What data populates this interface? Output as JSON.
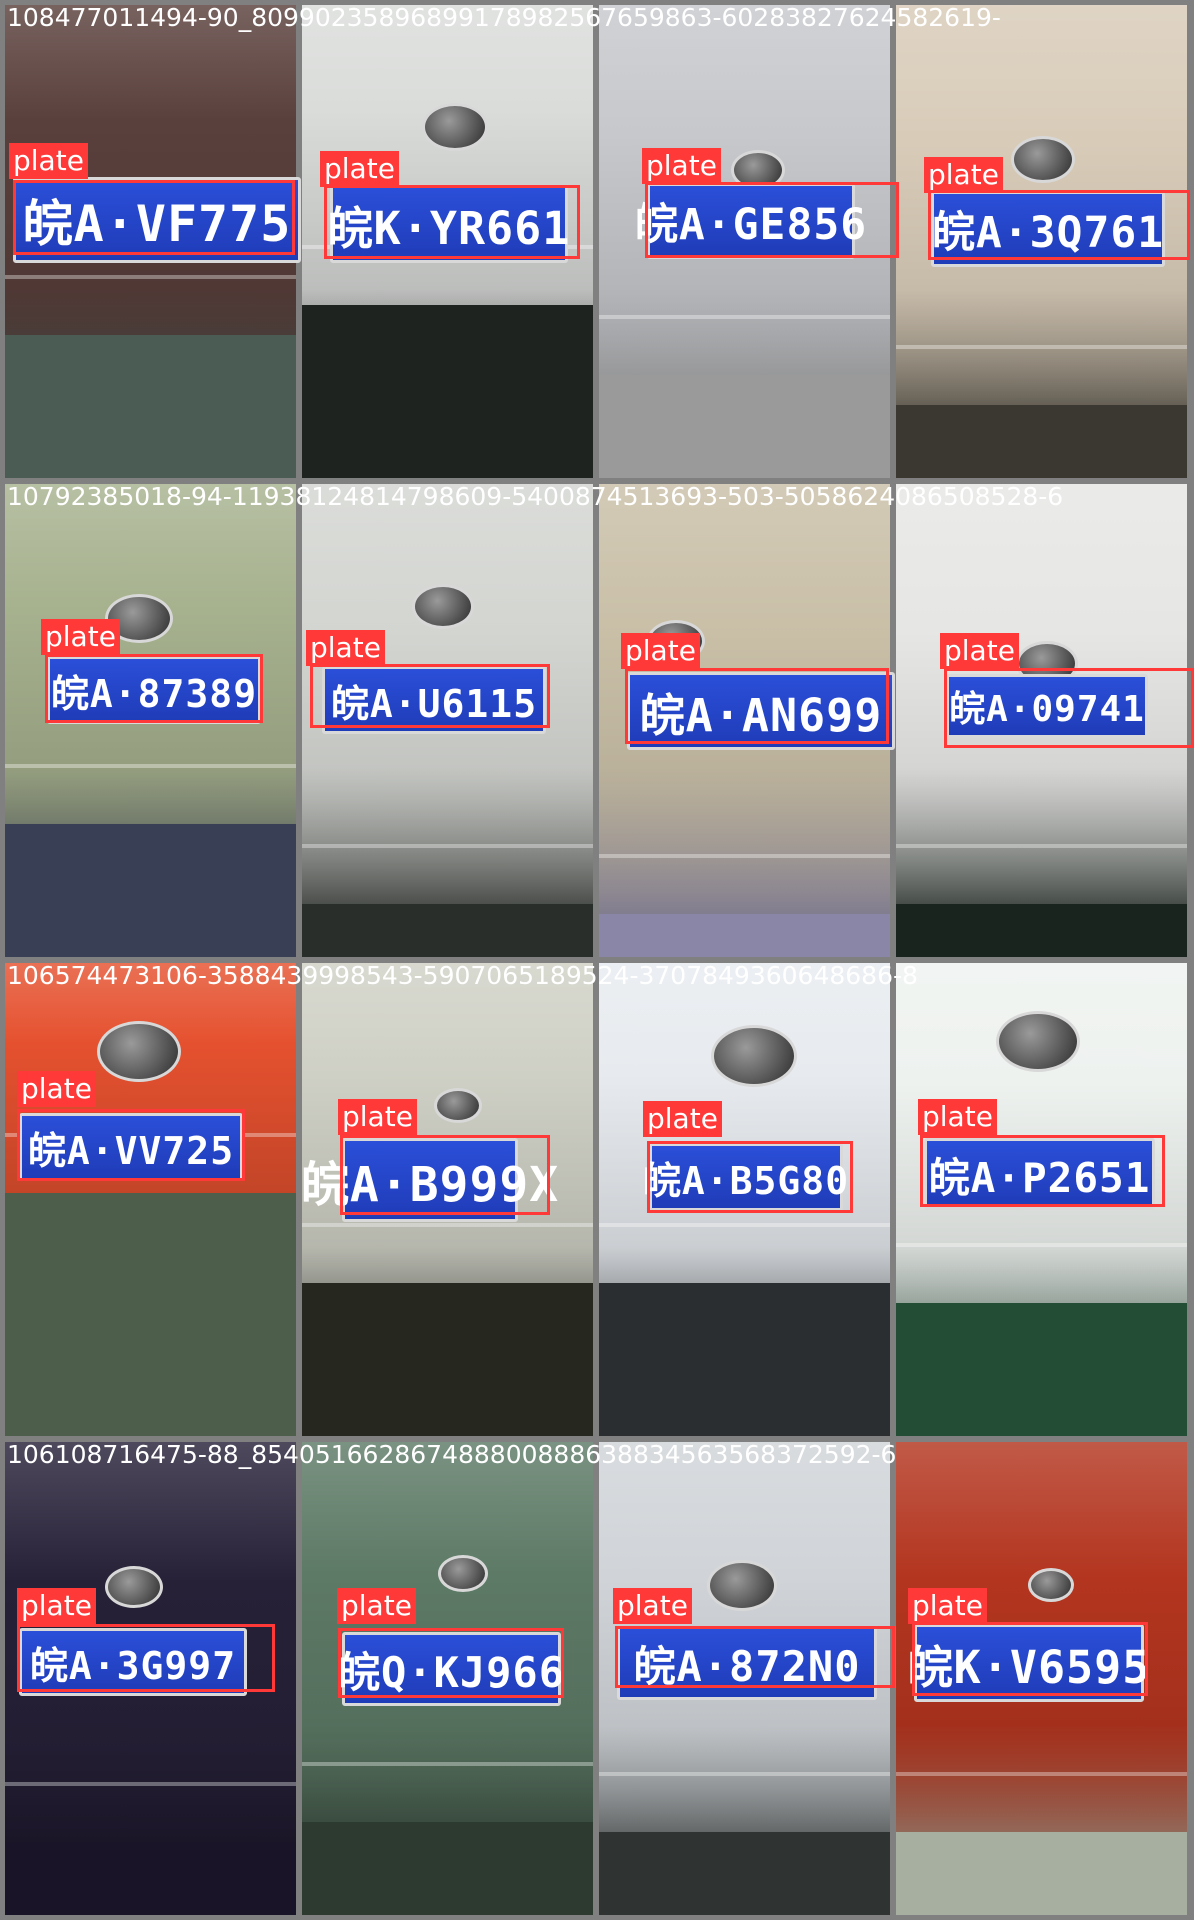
{
  "background_color": "#808080",
  "box_color": "#ff3838",
  "tiles": [
    {
      "title": "108477011494-90_80990235896899178982567659863-60283827624582619-",
      "plate_text": "皖A·VF775",
      "label": "plate",
      "car": "#5a403c",
      "ground": "#4b5c55"
    },
    {
      "title": "",
      "plate_text": "皖K·YR661",
      "label": "plate",
      "car": "#dadcda",
      "ground": "#1f2320"
    },
    {
      "title": "",
      "plate_text": "皖A·GE856",
      "label": "plate",
      "car": "#c6c8cc",
      "ground": "#9a9a9a"
    },
    {
      "title": "",
      "plate_text": "皖A·3Q761",
      "label": "plate",
      "car": "#d8cbb8",
      "ground": "#3a3830"
    },
    {
      "title": "10792385018-94-11938124814798609-5400874513693-503-5058624086508528-6",
      "plate_text": "皖A·87389",
      "label": "plate",
      "car": "#a7b28f",
      "ground": "#394055"
    },
    {
      "title": "",
      "plate_text": "皖A·U6115",
      "label": "plate",
      "car": "#d3d5d1",
      "ground": "#2a2e2a"
    },
    {
      "title": "",
      "plate_text": "皖A·AN699",
      "label": "plate",
      "car": "#c9bfa7",
      "ground": "#8a86a8"
    },
    {
      "title": "",
      "plate_text": "皖A·09741",
      "label": "plate",
      "car": "#e6e6e4",
      "ground": "#1a241e"
    },
    {
      "title": "106574473106-3588439998543-5907065189524-3707849360648686-8",
      "plate_text": "皖A·VV725",
      "label": "plate",
      "car": "#e5512f",
      "ground": "#4d5f4a"
    },
    {
      "title": "",
      "plate_text": "皖A·B999X",
      "label": "plate",
      "car": "#cfd0c5",
      "ground": "#26281f"
    },
    {
      "title": "",
      "plate_text": "皖A·B5G80",
      "label": "plate",
      "car": "#e7ebef",
      "ground": "#2b2e30"
    },
    {
      "title": "",
      "plate_text": "皖A·P2651",
      "label": "plate",
      "car": "#eef2ef",
      "ground": "#244d36"
    },
    {
      "title": "106108716475-88_854051662867488800888638834563568372592-6",
      "plate_text": "皖A·3G997",
      "label": "plate",
      "car": "#272138",
      "ground": "#191428"
    },
    {
      "title": "",
      "plate_text": "皖Q·KJ966",
      "label": "plate",
      "car": "#5d7a66",
      "ground": "#2d3a30"
    },
    {
      "title": "",
      "plate_text": "皖A·872N0",
      "label": "plate",
      "car": "#d0d4d8",
      "ground": "#2f3432"
    },
    {
      "title": "",
      "plate_text": "皖K·V6595",
      "label": "plate",
      "car": "#b3351f",
      "ground": "#a7b0a0"
    }
  ]
}
